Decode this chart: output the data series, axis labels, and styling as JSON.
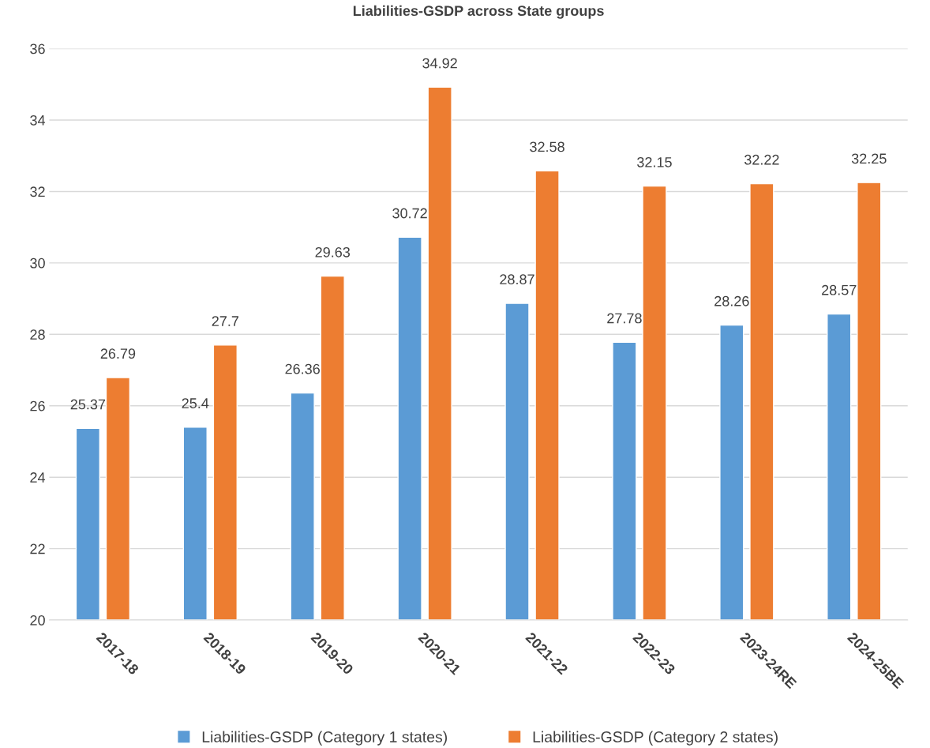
{
  "chart_data": {
    "type": "bar",
    "title": "Liabilities-GSDP across State groups",
    "categories": [
      "2017-18",
      "2018-19",
      "2019-20",
      "2020-21",
      "2021-22",
      "2022-23",
      "2023-24RE",
      "2024-25BE"
    ],
    "series": [
      {
        "name": "Liabilities-GSDP (Category 1 states)",
        "color": "#5b9bd5",
        "values": [
          25.37,
          25.4,
          26.36,
          30.72,
          28.87,
          27.78,
          28.26,
          28.57
        ]
      },
      {
        "name": "Liabilities-GSDP (Category 2 states)",
        "color": "#ed7d31",
        "values": [
          26.79,
          27.7,
          29.63,
          34.92,
          32.58,
          32.15,
          32.22,
          32.25
        ]
      }
    ],
    "ylim": [
      20,
      36
    ],
    "yticks": [
      20,
      22,
      24,
      26,
      28,
      30,
      32,
      34,
      36
    ],
    "grid": "y",
    "legend": "bottom",
    "data_labels": true
  }
}
